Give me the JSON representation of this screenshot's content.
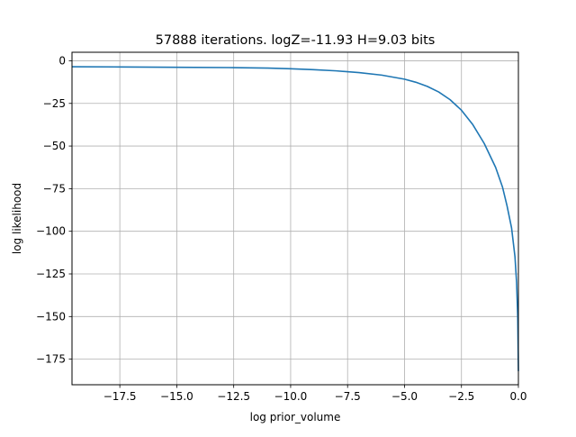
{
  "chart_data": {
    "type": "line",
    "title": "57888 iterations. logZ=-11.93 H=9.03 bits",
    "xlabel": "log prior_volume",
    "ylabel": "log likelihood",
    "xlim": [
      -19.6,
      0.0
    ],
    "ylim": [
      -190,
      5
    ],
    "grid": true,
    "xticks": [
      -17.5,
      -15.0,
      -12.5,
      -10.0,
      -7.5,
      -5.0,
      -2.5,
      0.0
    ],
    "xtick_labels": [
      "−17.5",
      "−15.0",
      "−12.5",
      "−10.0",
      "−7.5",
      "−5.0",
      "−2.5",
      "0.0"
    ],
    "yticks": [
      0,
      -25,
      -50,
      -75,
      -100,
      -125,
      -150,
      -175
    ],
    "ytick_labels": [
      "0",
      "−25",
      "−50",
      "−75",
      "−100",
      "−125",
      "−150",
      "−175"
    ],
    "series": [
      {
        "color": "#1f77b4",
        "x": [
          -19.6,
          -17.5,
          -15.0,
          -12.5,
          -11.0,
          -10.0,
          -9.0,
          -8.0,
          -7.0,
          -6.0,
          -5.0,
          -4.5,
          -4.0,
          -3.5,
          -3.0,
          -2.5,
          -2.0,
          -1.5,
          -1.0,
          -0.7,
          -0.5,
          -0.3,
          -0.15,
          -0.08,
          -0.03,
          0.0
        ],
        "y": [
          -3.5,
          -3.6,
          -3.8,
          -4.0,
          -4.3,
          -4.7,
          -5.2,
          -5.9,
          -6.9,
          -8.4,
          -10.8,
          -12.6,
          -15.0,
          -18.3,
          -22.8,
          -29.0,
          -37.5,
          -48.5,
          -62.5,
          -74.0,
          -85.0,
          -98.0,
          -115.0,
          -130.0,
          -150.0,
          -182.0
        ]
      }
    ]
  }
}
